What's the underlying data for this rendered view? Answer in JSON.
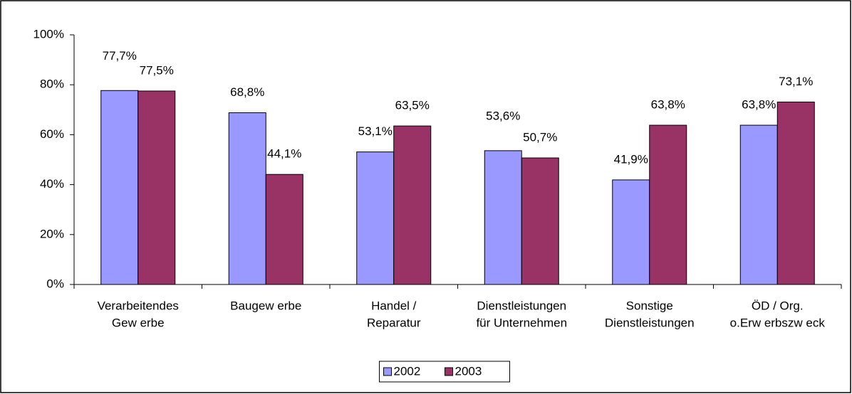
{
  "chart_data": {
    "type": "bar",
    "categories": [
      [
        "Verarbeitendes",
        "Gew erbe"
      ],
      [
        "Baugew erbe"
      ],
      [
        "Handel /",
        "Reparatur"
      ],
      [
        "Dienstleistungen",
        "für Unternehmen"
      ],
      [
        "Sonstige",
        "Dienstleistungen"
      ],
      [
        "ÖD / Org.",
        "o.Erw erbszw eck"
      ]
    ],
    "series": [
      {
        "name": "2002",
        "color": "#9999ff",
        "values": [
          77.7,
          68.8,
          53.1,
          53.6,
          41.9,
          63.8
        ],
        "value_labels": [
          "77,7%",
          "68,8%",
          "53,1%",
          "53,6%",
          "41,9%",
          "63,8%"
        ]
      },
      {
        "name": "2003",
        "color": "#993366",
        "values": [
          77.5,
          44.1,
          63.5,
          50.7,
          63.8,
          73.1
        ],
        "value_labels": [
          "77,5%",
          "44,1%",
          "63,5%",
          "50,7%",
          "63,8%",
          "73,1%"
        ]
      }
    ],
    "ylim": [
      0,
      100
    ],
    "yticks": [
      {
        "value": 0,
        "label": "0%"
      },
      {
        "value": 20,
        "label": "20%"
      },
      {
        "value": 40,
        "label": "40%"
      },
      {
        "value": 60,
        "label": "60%"
      },
      {
        "value": 80,
        "label": "80%"
      },
      {
        "value": 100,
        "label": "100%"
      }
    ],
    "legend": "bottom"
  }
}
